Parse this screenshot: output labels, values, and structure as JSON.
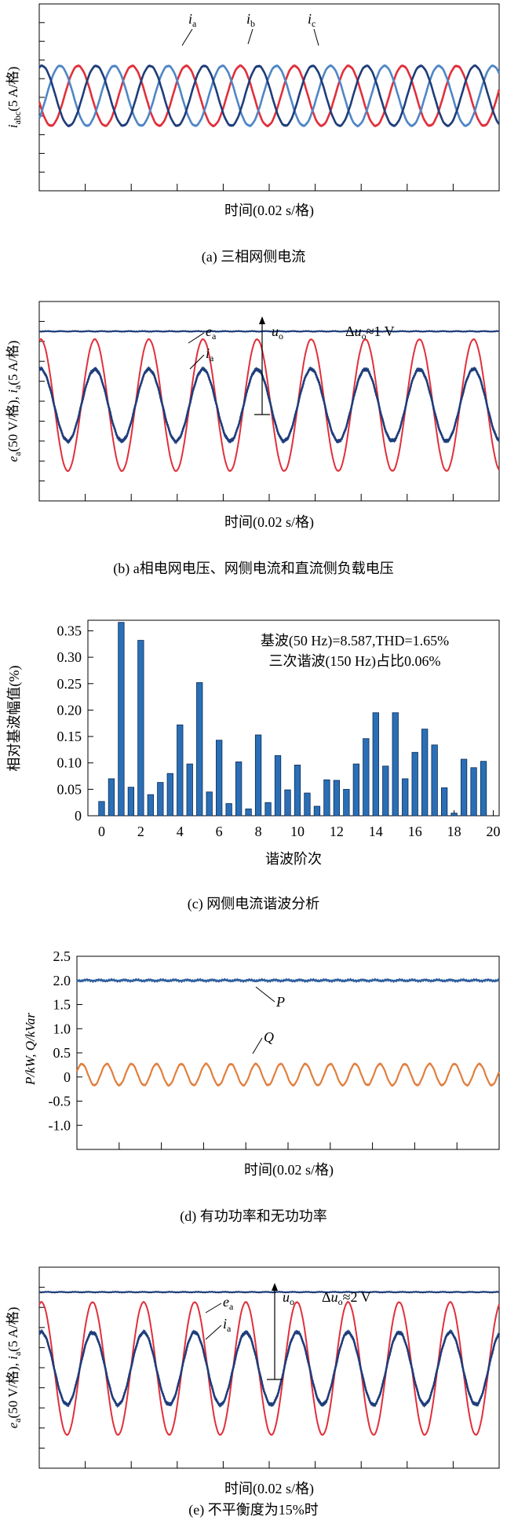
{
  "colors": {
    "red": "#e0303c",
    "navy": "#1e3d7a",
    "blue": "#4f86c6",
    "bar": "#2a6fb6",
    "orange": "#e07f3e",
    "steel": "#2f5f9e"
  },
  "panels": {
    "a": {
      "caption": "(a) 三相网侧电流",
      "xlabel": "时间(0.02 s/格)",
      "ylabel_main": "i",
      "ylabel_sub": "abc",
      "ylabel_rest": "(5 A/格)",
      "labels": [
        {
          "main": "i",
          "sub": "a"
        },
        {
          "main": "i",
          "sub": "b"
        },
        {
          "main": "i",
          "sub": "c"
        }
      ]
    },
    "b": {
      "caption": "(b) a相电网电压、网侧电流和直流侧负载电压",
      "xlabel": "时间(0.02 s/格)",
      "ylabel_main1": "e",
      "ylabel_sub1": "a",
      "ylabel_mid": "(50 V/格), ",
      "ylabel_main2": "i",
      "ylabel_sub2": "a",
      "ylabel_rest": "(5 A/格)",
      "label_ea": {
        "main": "e",
        "sub": "a"
      },
      "label_ia": {
        "main": "i",
        "sub": "a"
      },
      "label_uo": {
        "main": "u",
        "sub": "o"
      },
      "delta_text": {
        "pre": "Δ",
        "main": "u",
        "sub": "o",
        "post": "≈1 V"
      }
    },
    "c": {
      "caption": "(c) 网侧电流谐波分析",
      "xlabel": "谐波阶次",
      "ylabel": "相对基波幅值(%)",
      "annot1": "基波(50 Hz)=8.587,THD=1.65%",
      "annot2": "三次谐波(150 Hz)占比0.06%"
    },
    "d": {
      "caption": "(d) 有功功率和无功功率",
      "xlabel": "时间(0.02 s/格)",
      "ylabel": "P/kW, Q/kVar",
      "label_P": "P",
      "label_Q": "Q"
    },
    "e": {
      "caption": "(e) 不平衡度为15%时",
      "xlabel": "时间(0.02 s/格)",
      "ylabel_main1": "e",
      "ylabel_sub1": "a",
      "ylabel_mid": "(50 V/格), ",
      "ylabel_main2": "i",
      "ylabel_sub2": "a",
      "ylabel_rest": "(5 A/格)",
      "label_ea": {
        "main": "e",
        "sub": "a"
      },
      "label_ia": {
        "main": "i",
        "sub": "a"
      },
      "label_uo": {
        "main": "u",
        "sub": "o"
      },
      "delta_text": {
        "pre": "Δ",
        "main": "u",
        "sub": "o",
        "post": "≈2 V"
      }
    }
  },
  "chart_data": [
    {
      "panel": "a",
      "type": "line",
      "xlabel": "时间(0.02 s/格)",
      "ylabel": "iabc(5 A/格)",
      "cycles_shown": 8.5,
      "series": [
        {
          "name": "ia",
          "amplitude_div": 1.6,
          "phase_deg": 0,
          "color": "#1e3d7a"
        },
        {
          "name": "ib",
          "amplitude_div": 1.6,
          "phase_deg": -120,
          "color": "#4f86c6"
        },
        {
          "name": "ic",
          "amplitude_div": 1.6,
          "phase_deg": 120,
          "color": "#e0303c"
        }
      ]
    },
    {
      "panel": "b",
      "type": "line",
      "xlabel": "时间(0.02 s/格)",
      "cycles_shown": 8.5,
      "series": [
        {
          "name": "ea",
          "amplitude_div": 3.3,
          "color": "#e0303c"
        },
        {
          "name": "ia",
          "amplitude_div": 1.8,
          "color": "#1e3d7a"
        },
        {
          "name": "uo",
          "level_div": 3.7,
          "color": "#1e3d7a"
        }
      ],
      "annotation": "Δuo≈1 V"
    },
    {
      "panel": "c",
      "type": "bar",
      "xlabel": "谐波阶次",
      "ylabel": "相对基波幅值(%)",
      "xlim": [
        -0.7,
        20.3
      ],
      "ylim": [
        0,
        0.37
      ],
      "xticks": [
        0,
        2,
        4,
        6,
        8,
        10,
        12,
        14,
        16,
        18,
        20
      ],
      "yticks": [
        0,
        0.05,
        0.1,
        0.15,
        0.2,
        0.25,
        0.3,
        0.35
      ],
      "x": [
        0,
        0.5,
        1,
        1.5,
        2,
        2.5,
        3,
        3.5,
        4,
        4.5,
        5,
        5.5,
        6,
        6.5,
        7,
        7.5,
        8,
        8.5,
        9,
        9.5,
        10,
        10.5,
        11,
        11.5,
        12,
        12.5,
        13,
        13.5,
        14,
        14.5,
        15,
        15.5,
        16,
        16.5,
        17,
        17.5,
        18,
        18.5,
        19,
        19.5
      ],
      "values": [
        0.027,
        0.07,
        0.366,
        0.054,
        0.332,
        0.04,
        0.063,
        0.08,
        0.172,
        0.098,
        0.252,
        0.045,
        0.143,
        0.023,
        0.102,
        0.013,
        0.153,
        0.025,
        0.114,
        0.049,
        0.096,
        0.043,
        0.018,
        0.068,
        0.067,
        0.05,
        0.098,
        0.146,
        0.195,
        0.094,
        0.195,
        0.07,
        0.12,
        0.164,
        0.134,
        0.053,
        0.005,
        0.107,
        0.091,
        0.103
      ],
      "annotations": [
        "基波(50 Hz)=8.587,THD=1.65%",
        "三次谐波(150 Hz)占比0.06%"
      ]
    },
    {
      "panel": "d",
      "type": "line",
      "xlabel": "时间(0.02 s/格)",
      "ylabel": "P/kW, Q/kVar",
      "ylim": [
        -1.5,
        2.5
      ],
      "yticks": [
        -1.0,
        -0.5,
        0,
        0.5,
        1.0,
        1.5,
        2.0,
        2.5
      ],
      "ytick_labels": [
        "-1.0",
        "-0.5",
        "0",
        "0.5",
        "1.0",
        "1.5",
        "2.0",
        "2.5"
      ],
      "series": [
        {
          "name": "P",
          "mean": 2.0,
          "ripple": 0.02,
          "color": "#2f5f9e"
        },
        {
          "name": "Q",
          "mean": 0.05,
          "amplitude": 0.22,
          "cycles": 17,
          "color": "#e07f3e"
        }
      ]
    },
    {
      "panel": "e",
      "type": "line",
      "xlabel": "时间(0.02 s/格)",
      "cycles_shown": 9,
      "series": [
        {
          "name": "ea",
          "amplitude_div": 3.3,
          "color": "#e0303c"
        },
        {
          "name": "ia",
          "amplitude_div": 1.8,
          "color": "#1e3d7a"
        },
        {
          "name": "uo",
          "level_div": 3.8,
          "color": "#1e3d7a"
        }
      ],
      "annotation": "Δuo≈2 V"
    }
  ]
}
